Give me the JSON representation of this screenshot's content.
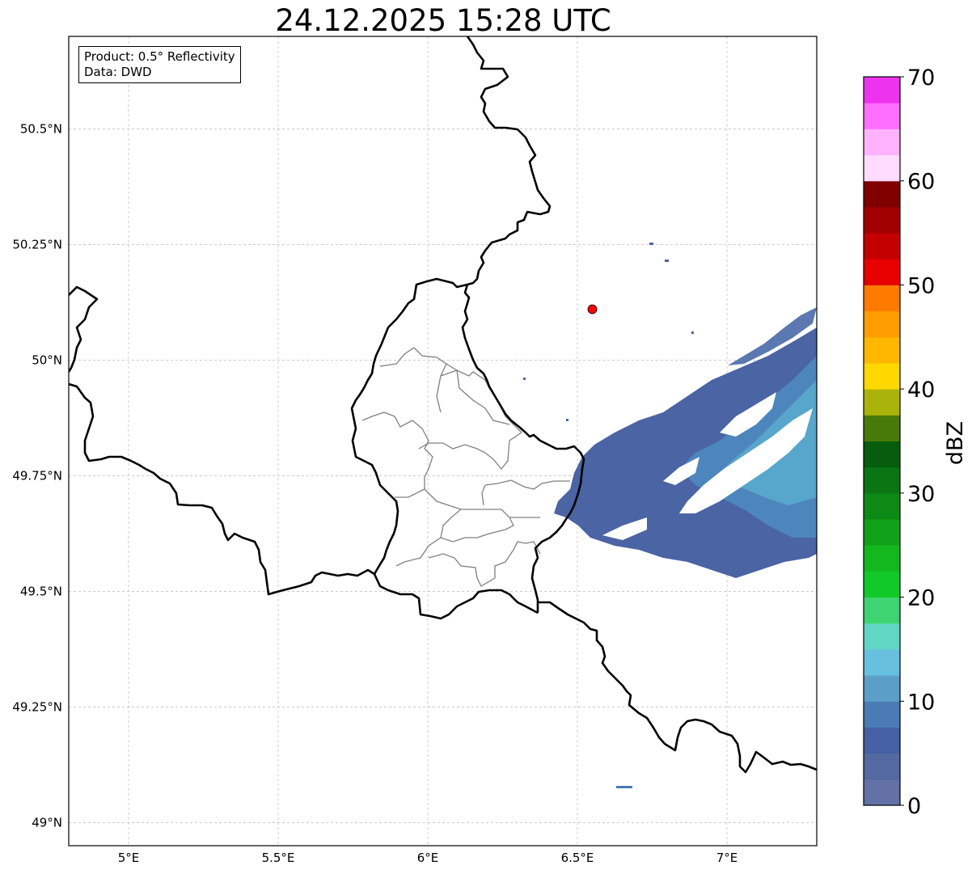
{
  "title": "24.12.2025 15:28 UTC",
  "info": {
    "product": "Product: 0.5° Reflectivity",
    "data": "Data: DWD"
  },
  "map": {
    "lon_range": [
      4.8,
      7.3
    ],
    "lat_range": [
      48.95,
      50.7
    ],
    "lon_ticks": [
      {
        "value": 5.0,
        "label": "5°E"
      },
      {
        "value": 5.5,
        "label": "5.5°E"
      },
      {
        "value": 6.0,
        "label": "6°E"
      },
      {
        "value": 6.5,
        "label": "6.5°E"
      },
      {
        "value": 7.0,
        "label": "7°E"
      }
    ],
    "lat_ticks": [
      {
        "value": 50.5,
        "label": "50.5°N"
      },
      {
        "value": 50.25,
        "label": "50.25°N"
      },
      {
        "value": 50.0,
        "label": "50°N"
      },
      {
        "value": 49.75,
        "label": "49.75°N"
      },
      {
        "value": 49.5,
        "label": "49.5°N"
      },
      {
        "value": 49.25,
        "label": "49.25°N"
      },
      {
        "value": 49.0,
        "label": "49°N"
      }
    ],
    "radar_site": {
      "lon": 6.55,
      "lat": 50.11,
      "color": "#ff0000"
    }
  },
  "colorbar": {
    "label": "dBZ",
    "min": 0,
    "max": 70,
    "ticks": [
      {
        "value": 0,
        "label": "0"
      },
      {
        "value": 10,
        "label": "10"
      },
      {
        "value": 20,
        "label": "20"
      },
      {
        "value": 30,
        "label": "30"
      },
      {
        "value": 40,
        "label": "40"
      },
      {
        "value": 50,
        "label": "50"
      },
      {
        "value": 60,
        "label": "60"
      },
      {
        "value": 70,
        "label": "70"
      }
    ],
    "colors": [
      "#6371a6",
      "#53699f",
      "#4560a4",
      "#4a7bb4",
      "#5b9ec8",
      "#67c0de",
      "#62d6c5",
      "#3fd472",
      "#12c92a",
      "#13b81e",
      "#11a119",
      "#0d8a15",
      "#0a7512",
      "#075c0d",
      "#487a0a",
      "#a9b30a",
      "#ffd800",
      "#ffb700",
      "#ff9c00",
      "#ff7b00",
      "#e60000",
      "#c40000",
      "#a10000",
      "#800000",
      "#ffdcff",
      "#ffb3ff",
      "#ff6fff",
      "#ee33ee"
    ]
  }
}
